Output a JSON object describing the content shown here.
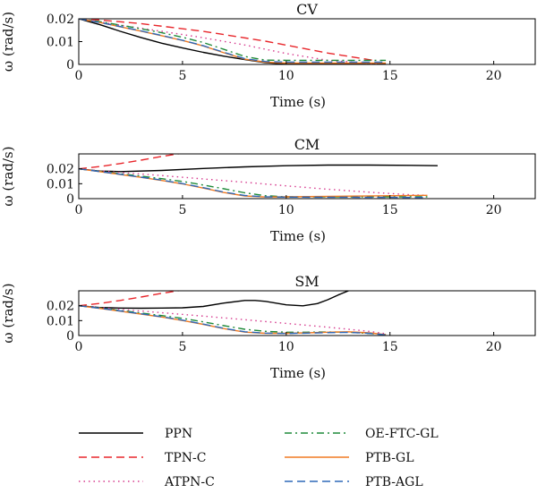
{
  "chart_data": [
    {
      "type": "line",
      "title": "CV",
      "xlabel": "Time (s)",
      "ylabel": "ω (rad/s)",
      "xlim": [
        0,
        22
      ],
      "ylim": [
        0,
        0.02
      ],
      "xticks": [
        0,
        5,
        10,
        15,
        20
      ],
      "xtick_labels": [
        "0",
        "5",
        "10",
        "15",
        "20"
      ],
      "yticks": [
        0,
        0.01,
        0.02
      ],
      "ytick_labels": [
        "0",
        "0.01",
        "0.02"
      ],
      "series": [
        {
          "name": "PPN",
          "x": [
            0,
            1,
            2,
            3,
            4,
            5,
            6,
            7,
            8,
            9,
            10,
            14.8
          ],
          "y": [
            0.02,
            0.0175,
            0.0145,
            0.0118,
            0.0093,
            0.0072,
            0.0053,
            0.0036,
            0.0021,
            0.0008,
            0.0002,
            0.0002
          ]
        },
        {
          "name": "TPN-C",
          "x": [
            0,
            1,
            3,
            6,
            9,
            12,
            14.2
          ],
          "y": [
            0.02,
            0.0195,
            0.0179,
            0.0145,
            0.0102,
            0.005,
            0.0018
          ]
        },
        {
          "name": "ATPN-C",
          "x": [
            0,
            2,
            4,
            6,
            8,
            10,
            12,
            14.5
          ],
          "y": [
            0.02,
            0.0172,
            0.0145,
            0.0117,
            0.0085,
            0.0048,
            0.0018,
            0.0002
          ]
        },
        {
          "name": "OE-FTC-GL",
          "x": [
            0,
            1,
            2,
            3,
            4,
            5,
            6,
            7,
            8,
            9,
            10,
            14.8
          ],
          "y": [
            0.02,
            0.0188,
            0.0172,
            0.0156,
            0.0139,
            0.0119,
            0.0096,
            0.0066,
            0.0035,
            0.0019,
            0.0018,
            0.0018
          ]
        },
        {
          "name": "PTB-GL",
          "x": [
            0,
            1,
            2,
            3,
            4,
            5,
            6,
            7,
            8,
            9,
            10,
            14.8
          ],
          "y": [
            0.02,
            0.0184,
            0.0165,
            0.0146,
            0.0126,
            0.0105,
            0.0081,
            0.0051,
            0.0023,
            0.001,
            0.0006,
            0.0006
          ]
        },
        {
          "name": "PTB-AGL",
          "x": [
            0,
            1,
            2,
            3,
            4,
            5,
            6,
            7,
            8,
            9,
            10,
            14.8
          ],
          "y": [
            0.02,
            0.0184,
            0.0166,
            0.0147,
            0.0127,
            0.0106,
            0.0082,
            0.0053,
            0.0025,
            0.0013,
            0.001,
            0.001
          ]
        }
      ]
    },
    {
      "type": "line",
      "title": "CM",
      "xlabel": "Time (s)",
      "ylabel": "ω (rad/s)",
      "xlim": [
        0,
        22
      ],
      "ylim": [
        0,
        0.03
      ],
      "xticks": [
        0,
        5,
        10,
        15,
        20
      ],
      "xtick_labels": [
        "0",
        "5",
        "10",
        "15",
        "20"
      ],
      "yticks": [
        0,
        0.01,
        0.02
      ],
      "ytick_labels": [
        "0",
        "0.01",
        "0.02"
      ],
      "series": [
        {
          "name": "PPN",
          "x": [
            0,
            1,
            2,
            4,
            6,
            8,
            10,
            12,
            14,
            16,
            17.3
          ],
          "y": [
            0.02,
            0.0185,
            0.0181,
            0.0189,
            0.0202,
            0.0213,
            0.0221,
            0.0225,
            0.0225,
            0.0223,
            0.0221
          ]
        },
        {
          "name": "TPN-C",
          "x": [
            0,
            1,
            2,
            3,
            4,
            4.8
          ],
          "y": [
            0.02,
            0.0215,
            0.0235,
            0.0258,
            0.0283,
            0.03
          ]
        },
        {
          "name": "ATPN-C",
          "x": [
            0,
            2,
            4,
            6,
            8,
            10,
            12,
            14,
            16,
            16.8
          ],
          "y": [
            0.02,
            0.0175,
            0.0155,
            0.0132,
            0.011,
            0.0086,
            0.0063,
            0.0043,
            0.0026,
            0.0022
          ]
        },
        {
          "name": "OE-FTC-GL",
          "x": [
            0,
            1,
            2,
            3,
            4,
            5,
            6,
            7,
            8,
            9,
            10,
            16.8
          ],
          "y": [
            0.02,
            0.0183,
            0.0167,
            0.0151,
            0.0134,
            0.0115,
            0.0091,
            0.0066,
            0.0039,
            0.002,
            0.0012,
            0.0012
          ]
        },
        {
          "name": "PTB-GL",
          "x": [
            0,
            1,
            2,
            3,
            4,
            5,
            6,
            7,
            8,
            9,
            10,
            16.8
          ],
          "y": [
            0.02,
            0.0181,
            0.0162,
            0.0143,
            0.0122,
            0.0099,
            0.0071,
            0.0041,
            0.0018,
            0.0011,
            0.0012,
            0.0022
          ]
        },
        {
          "name": "PTB-AGL",
          "x": [
            0,
            1,
            2,
            3,
            4,
            5,
            6,
            7,
            8,
            9,
            10,
            16.8
          ],
          "y": [
            0.02,
            0.0182,
            0.0163,
            0.0144,
            0.0124,
            0.0101,
            0.0074,
            0.0044,
            0.0021,
            0.0012,
            0.001,
            0.0008
          ]
        }
      ]
    },
    {
      "type": "line",
      "title": "SM",
      "xlabel": "Time (s)",
      "ylabel": "ω (rad/s)",
      "xlim": [
        0,
        22
      ],
      "ylim": [
        0,
        0.03
      ],
      "xticks": [
        0,
        5,
        10,
        15,
        20
      ],
      "xtick_labels": [
        "0",
        "5",
        "10",
        "15",
        "20"
      ],
      "yticks": [
        0,
        0.01,
        0.02
      ],
      "ytick_labels": [
        "0",
        "0.01",
        "0.02"
      ],
      "series": [
        {
          "name": "PPN",
          "x": [
            0,
            1,
            2,
            3,
            4,
            5,
            6,
            7,
            8,
            8.5,
            9,
            10,
            10.8,
            11.5,
            12,
            12.5,
            13
          ],
          "y": [
            0.02,
            0.0188,
            0.0184,
            0.0183,
            0.0184,
            0.0186,
            0.0195,
            0.0218,
            0.0235,
            0.0235,
            0.0229,
            0.0206,
            0.0199,
            0.0214,
            0.024,
            0.0272,
            0.03
          ]
        },
        {
          "name": "TPN-C",
          "x": [
            0,
            1,
            2,
            3,
            4,
            4.8
          ],
          "y": [
            0.02,
            0.0215,
            0.0235,
            0.0258,
            0.0283,
            0.03
          ]
        },
        {
          "name": "ATPN-C",
          "x": [
            0,
            2,
            4,
            6,
            8,
            10,
            12,
            14,
            14.8
          ],
          "y": [
            0.02,
            0.0176,
            0.0153,
            0.013,
            0.0106,
            0.0081,
            0.0056,
            0.0028,
            0.0012
          ]
        },
        {
          "name": "OE-FTC-GL",
          "x": [
            0,
            1,
            2,
            3,
            4,
            5,
            6,
            7,
            8,
            9,
            10,
            11,
            12,
            13,
            14,
            14.8
          ],
          "y": [
            0.02,
            0.0185,
            0.0168,
            0.0151,
            0.0134,
            0.0115,
            0.0092,
            0.0066,
            0.0042,
            0.0028,
            0.0022,
            0.0022,
            0.0024,
            0.0022,
            0.0014,
            0.0006
          ]
        },
        {
          "name": "PTB-GL",
          "x": [
            0,
            1,
            2,
            3,
            4,
            5,
            6,
            7,
            8,
            9,
            10,
            11,
            12,
            13,
            14,
            14.8
          ],
          "y": [
            0.02,
            0.0182,
            0.0163,
            0.0144,
            0.0124,
            0.0101,
            0.0075,
            0.0046,
            0.0023,
            0.0015,
            0.0015,
            0.0018,
            0.0022,
            0.0025,
            0.0018,
            0.0006
          ]
        },
        {
          "name": "PTB-AGL",
          "x": [
            0,
            1,
            2,
            3,
            4,
            5,
            6,
            7,
            8,
            9,
            10,
            11,
            12,
            13,
            14,
            14.8
          ],
          "y": [
            0.02,
            0.0183,
            0.0165,
            0.0146,
            0.0126,
            0.0103,
            0.0077,
            0.0048,
            0.0025,
            0.0016,
            0.0014,
            0.0016,
            0.0019,
            0.0021,
            0.0015,
            0.0004
          ]
        }
      ]
    }
  ],
  "legend": {
    "placement": "bottom",
    "entries": [
      {
        "name": "PPN",
        "color": "#000000",
        "dash": "solid"
      },
      {
        "name": "TPN-C",
        "color": "#e8262b",
        "dash": "dashed"
      },
      {
        "name": "ATPN-C",
        "color": "#d63a8e",
        "dash": "dotted"
      },
      {
        "name": "OE-FTC-GL",
        "color": "#1f8a3a",
        "dash": "dashdot"
      },
      {
        "name": "PTB-GL",
        "color": "#f07a22",
        "dash": "solid"
      },
      {
        "name": "PTB-AGL",
        "color": "#2e68b8",
        "dash": "dashed"
      }
    ]
  }
}
